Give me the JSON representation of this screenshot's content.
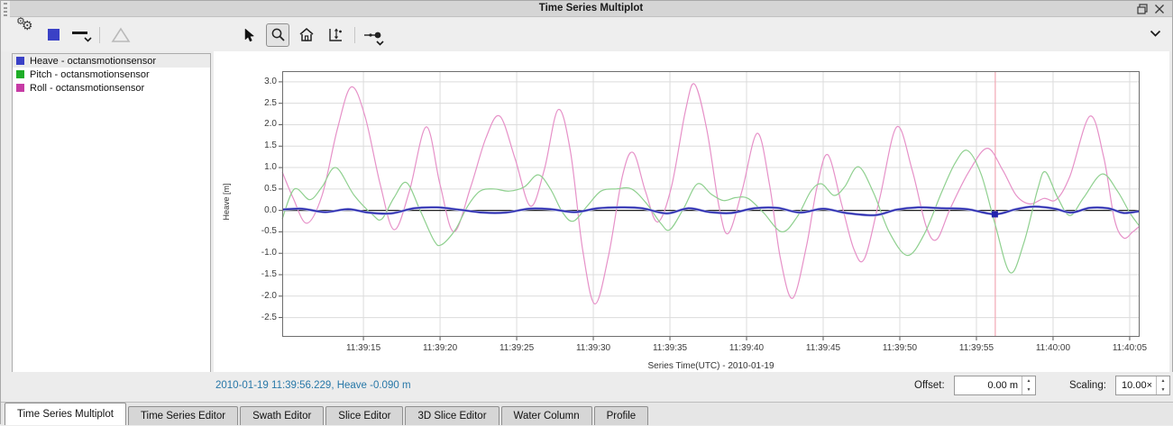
{
  "window": {
    "title": "Time Series Multiplot"
  },
  "titlebar": {
    "icons": [
      "float-icon",
      "close-icon"
    ]
  },
  "toolbar": {
    "icons_left": [
      "settings-gears-icon",
      "series-color-swatch",
      "line-style-dropdown-icon",
      "triangle-marker-icon"
    ],
    "icons_mid": [
      "pointer-icon",
      "zoom-icon",
      "home-icon",
      "fit-scale-icon",
      "node-picker-dropdown-icon"
    ],
    "active_tool": "zoom-icon",
    "icons_right": [
      "toolbar-overflow-chevron-icon"
    ],
    "swatch_color": "#3a41c6"
  },
  "legend": {
    "items": [
      {
        "label": "Heave - octansmotionsensor",
        "color": "#3a41c6",
        "selected": true
      },
      {
        "label": "Pitch - octansmotionsensor",
        "color": "#1ead27",
        "selected": false
      },
      {
        "label": "Roll - octansmotionsensor",
        "color": "#c63ba5",
        "selected": false
      }
    ]
  },
  "chart_data": {
    "type": "line",
    "xlabel": "Series Time(UTC) - 2010-01-19",
    "ylabel": "Heave [m]",
    "x_unit_note": "seconds after 11:39:00 UTC",
    "xlim": [
      9.7,
      65.65
    ],
    "ylim": [
      -2.95,
      3.25
    ],
    "grid": true,
    "y_ticks": [
      {
        "v": 3.0,
        "label": "3.0"
      },
      {
        "v": 2.5,
        "label": "2.5"
      },
      {
        "v": 2.0,
        "label": "2.0"
      },
      {
        "v": 1.5,
        "label": "1.5"
      },
      {
        "v": 1.0,
        "label": "1.0"
      },
      {
        "v": 0.5,
        "label": "0.5"
      },
      {
        "v": 0.0,
        "label": "0.0"
      },
      {
        "v": -0.5,
        "label": "-0.5"
      },
      {
        "v": -1.0,
        "label": "-1.0"
      },
      {
        "v": -1.5,
        "label": "-1.5"
      },
      {
        "v": -2.0,
        "label": "-2.0"
      },
      {
        "v": -2.5,
        "label": "-2.5"
      }
    ],
    "x_ticks": [
      {
        "t": 15,
        "label": "11:39:15"
      },
      {
        "t": 20,
        "label": "11:39:20"
      },
      {
        "t": 25,
        "label": "11:39:25"
      },
      {
        "t": 30,
        "label": "11:39:30"
      },
      {
        "t": 35,
        "label": "11:39:35"
      },
      {
        "t": 40,
        "label": "11:39:40"
      },
      {
        "t": 45,
        "label": "11:39:45"
      },
      {
        "t": 50,
        "label": "11:39:50"
      },
      {
        "t": 55,
        "label": "11:39:55"
      },
      {
        "t": 60,
        "label": "11:40:00"
      },
      {
        "t": 65,
        "label": "11:40:05"
      }
    ],
    "colors": {
      "grid": "#dcdcdc",
      "zero_line": "#1f1f1f",
      "border": "#6e6e6e",
      "cursor": "#f2a8b4"
    },
    "cursor_t": 56.229,
    "marker": {
      "series": "Heave",
      "t": 56.2,
      "v": -0.09,
      "color": "#2323ad"
    },
    "series": [
      {
        "name": "Roll",
        "color": "#e691c8",
        "width": 1.2,
        "points": [
          [
            9.7,
            0.9
          ],
          [
            10.4,
            0.3
          ],
          [
            11.3,
            -0.3
          ],
          [
            12.3,
            0.35
          ],
          [
            13.3,
            1.9
          ],
          [
            14.2,
            2.88
          ],
          [
            15.1,
            2.2
          ],
          [
            16.1,
            0.6
          ],
          [
            17,
            -0.45
          ],
          [
            18,
            0.45
          ],
          [
            19.1,
            1.95
          ],
          [
            20,
            0.6
          ],
          [
            20.9,
            -0.5
          ],
          [
            22,
            0.55
          ],
          [
            23,
            1.7
          ],
          [
            23.9,
            2.2
          ],
          [
            24.9,
            1.2
          ],
          [
            25.9,
            0.1
          ],
          [
            26.8,
            0.95
          ],
          [
            27.7,
            2.35
          ],
          [
            28.5,
            1.4
          ],
          [
            29.3,
            -0.9
          ],
          [
            30.1,
            -2.18
          ],
          [
            31,
            -1.05
          ],
          [
            31.9,
            0.8
          ],
          [
            32.6,
            1.35
          ],
          [
            33.4,
            0.45
          ],
          [
            34.2,
            -0.27
          ],
          [
            35.1,
            0.55
          ],
          [
            36,
            2.3
          ],
          [
            36.6,
            2.95
          ],
          [
            37.4,
            1.9
          ],
          [
            38.2,
            0.1
          ],
          [
            38.8,
            -0.54
          ],
          [
            39.7,
            0.45
          ],
          [
            40.7,
            1.8
          ],
          [
            41.5,
            0.6
          ],
          [
            42.2,
            -1.1
          ],
          [
            43,
            -2.05
          ],
          [
            43.9,
            -0.85
          ],
          [
            44.6,
            0.55
          ],
          [
            45.3,
            1.3
          ],
          [
            46.2,
            0.15
          ],
          [
            47,
            -0.9
          ],
          [
            47.7,
            -1.12
          ],
          [
            48.7,
            0.3
          ],
          [
            49.8,
            1.95
          ],
          [
            50.8,
            0.95
          ],
          [
            51.7,
            -0.35
          ],
          [
            52.4,
            -0.68
          ],
          [
            53.3,
            0.05
          ],
          [
            54.5,
            0.9
          ],
          [
            55.7,
            1.45
          ],
          [
            56.7,
            0.95
          ],
          [
            57.6,
            0.35
          ],
          [
            58.5,
            0.15
          ],
          [
            59.4,
            0.28
          ],
          [
            60.2,
            0.25
          ],
          [
            61.1,
            0.8
          ],
          [
            62.4,
            2.2
          ],
          [
            63.3,
            1.25
          ],
          [
            64,
            -0.2
          ],
          [
            64.6,
            -0.64
          ],
          [
            65.2,
            -0.5
          ],
          [
            65.6,
            -0.38
          ]
        ]
      },
      {
        "name": "Pitch",
        "color": "#8fd08f",
        "width": 1.2,
        "points": [
          [
            9.7,
            -0.2
          ],
          [
            10.5,
            0.5
          ],
          [
            11.5,
            0.25
          ],
          [
            12.3,
            0.55
          ],
          [
            13.2,
            1.0
          ],
          [
            14.4,
            0.35
          ],
          [
            15.6,
            -0.1
          ],
          [
            16.2,
            -0.2
          ],
          [
            17,
            0.3
          ],
          [
            17.8,
            0.65
          ],
          [
            18.7,
            0
          ],
          [
            19.6,
            -0.7
          ],
          [
            20.1,
            -0.8
          ],
          [
            21,
            -0.45
          ],
          [
            21.8,
            0.1
          ],
          [
            22.6,
            0.45
          ],
          [
            23.5,
            0.5
          ],
          [
            24.5,
            0.45
          ],
          [
            25.5,
            0.55
          ],
          [
            26.4,
            0.83
          ],
          [
            27.2,
            0.5
          ],
          [
            28,
            -0.05
          ],
          [
            28.7,
            -0.25
          ],
          [
            29.6,
            0.1
          ],
          [
            30.5,
            0.45
          ],
          [
            31.5,
            0.5
          ],
          [
            32.5,
            0.5
          ],
          [
            33.5,
            0.15
          ],
          [
            34.4,
            -0.3
          ],
          [
            35,
            -0.45
          ],
          [
            35.9,
            0.05
          ],
          [
            36.8,
            0.62
          ],
          [
            37.7,
            0.38
          ],
          [
            38.5,
            0.23
          ],
          [
            39.3,
            0.3
          ],
          [
            40.1,
            0.28
          ],
          [
            41.1,
            -0.05
          ],
          [
            42.3,
            -0.5
          ],
          [
            43.3,
            -0.15
          ],
          [
            44.2,
            0.45
          ],
          [
            44.9,
            0.62
          ],
          [
            45.7,
            0.35
          ],
          [
            46.4,
            0.55
          ],
          [
            47.3,
            1.02
          ],
          [
            48.3,
            0.4
          ],
          [
            49.3,
            -0.5
          ],
          [
            50.5,
            -1.05
          ],
          [
            51.6,
            -0.55
          ],
          [
            52.7,
            0.4
          ],
          [
            53.6,
            1.1
          ],
          [
            54.4,
            1.4
          ],
          [
            55.3,
            0.85
          ],
          [
            56.2,
            -0.3
          ],
          [
            57.2,
            -1.45
          ],
          [
            58.1,
            -0.75
          ],
          [
            59,
            0.5
          ],
          [
            59.5,
            0.9
          ],
          [
            60.3,
            0.3
          ],
          [
            61.1,
            -0.12
          ],
          [
            62,
            0.3
          ],
          [
            63.2,
            0.85
          ],
          [
            64.2,
            0.45
          ],
          [
            65,
            -0.05
          ],
          [
            65.6,
            -0.35
          ]
        ]
      },
      {
        "name": "Heave",
        "color": "#2323ad",
        "width": 1.5,
        "underlay_color": "#adb2e4",
        "underlay_width": 3,
        "points": [
          [
            9.7,
            0.02
          ],
          [
            11,
            0.04
          ],
          [
            12.5,
            -0.04
          ],
          [
            14,
            0.03
          ],
          [
            15.3,
            -0.05
          ],
          [
            16.8,
            -0.07
          ],
          [
            18.3,
            0.05
          ],
          [
            19.8,
            0.07
          ],
          [
            21.2,
            0.02
          ],
          [
            22.8,
            -0.05
          ],
          [
            24.3,
            -0.05
          ],
          [
            25.8,
            0.04
          ],
          [
            27.2,
            0.03
          ],
          [
            28.8,
            -0.04
          ],
          [
            30.3,
            0.05
          ],
          [
            31.8,
            0.07
          ],
          [
            33.2,
            0.05
          ],
          [
            34.8,
            -0.07
          ],
          [
            36.2,
            0.05
          ],
          [
            37.6,
            -0.04
          ],
          [
            39,
            -0.06
          ],
          [
            40.5,
            0.05
          ],
          [
            42,
            0.06
          ],
          [
            43.5,
            -0.05
          ],
          [
            45,
            0.04
          ],
          [
            46.5,
            -0.06
          ],
          [
            48.4,
            -0.11
          ],
          [
            49.8,
            0.02
          ],
          [
            51.2,
            0.07
          ],
          [
            52.8,
            0.05
          ],
          [
            54.4,
            0.03
          ],
          [
            56.2,
            -0.09
          ],
          [
            57.6,
            0.03
          ],
          [
            58.8,
            0.09
          ],
          [
            60.1,
            0.04
          ],
          [
            61.2,
            -0.05
          ],
          [
            62.4,
            0.06
          ],
          [
            63.6,
            0.05
          ],
          [
            64.6,
            -0.06
          ],
          [
            65.6,
            -0.02
          ]
        ]
      }
    ]
  },
  "status": {
    "text": "2010-01-19 11:39:56.229, Heave -0.090 m"
  },
  "controls": {
    "offset_label": "Offset:",
    "offset_value": "0.00 m",
    "scaling_label": "Scaling:",
    "scaling_value": "10.00×"
  },
  "tabs": [
    {
      "label": "Time Series Multiplot",
      "active": true
    },
    {
      "label": "Time Series Editor",
      "active": false
    },
    {
      "label": "Swath Editor",
      "active": false
    },
    {
      "label": "Slice Editor",
      "active": false
    },
    {
      "label": "3D Slice Editor",
      "active": false
    },
    {
      "label": "Water Column",
      "active": false
    },
    {
      "label": "Profile",
      "active": false
    }
  ]
}
